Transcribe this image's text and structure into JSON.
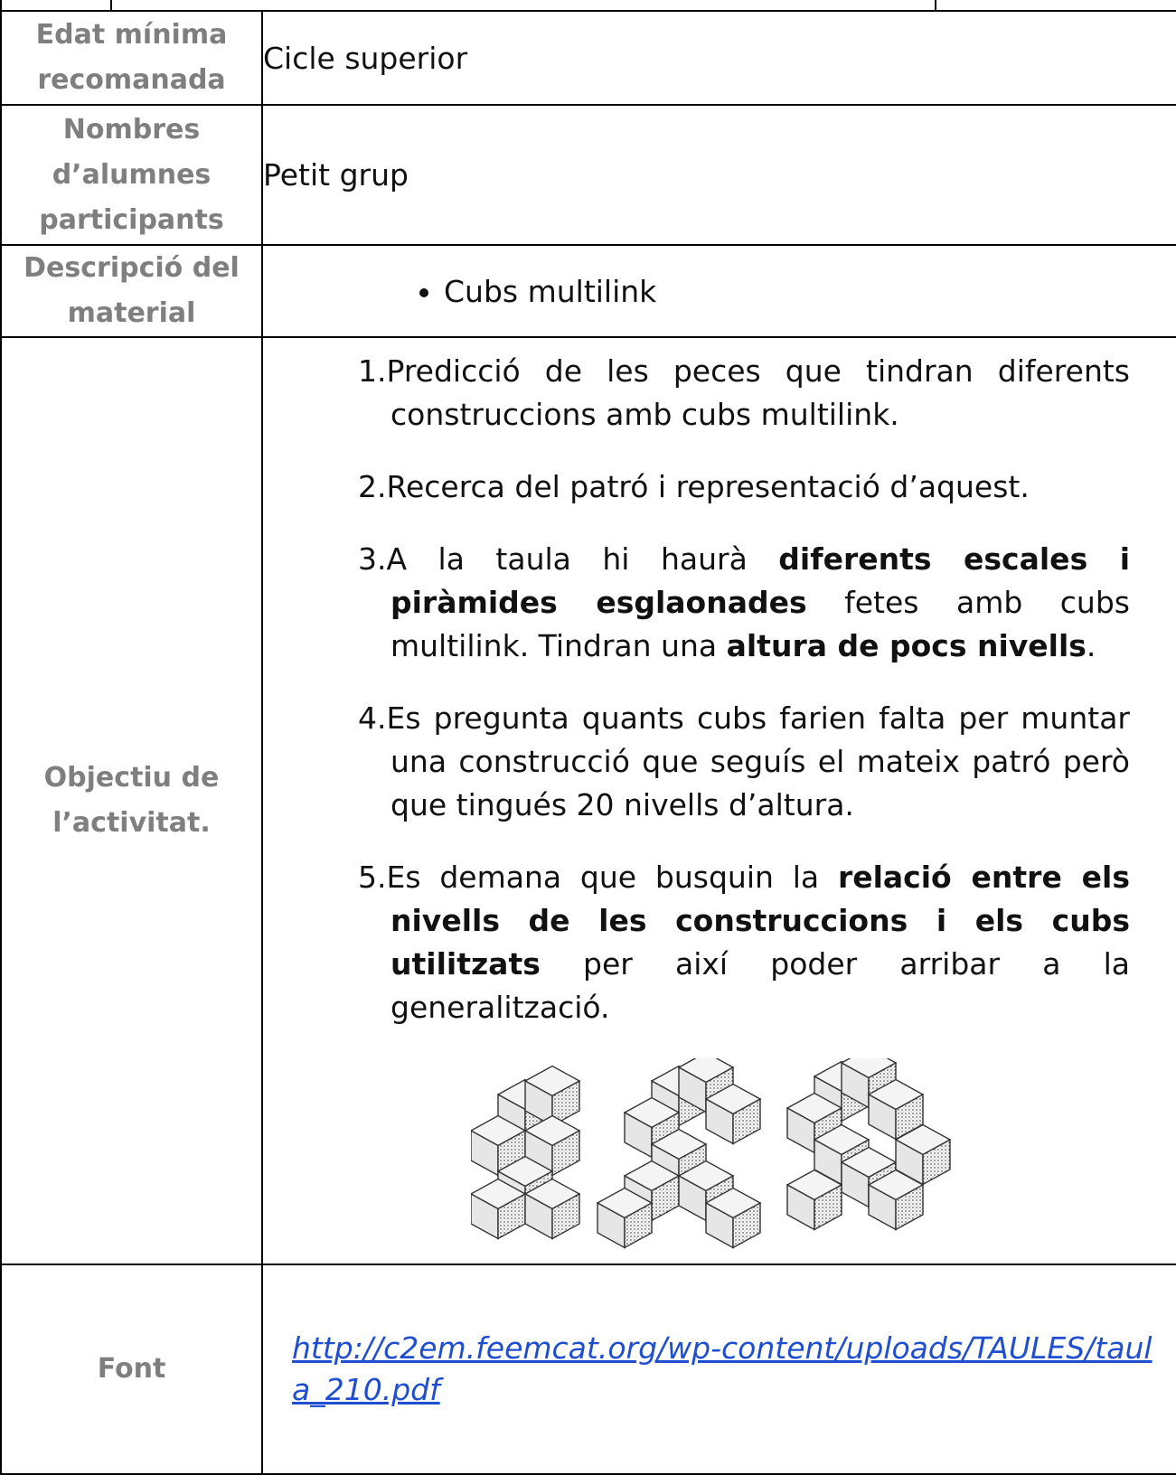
{
  "rows": [
    {
      "label": "Edat mínima recomanada",
      "value": "Cicle superior"
    },
    {
      "label": "Nombres d’alumnes participants",
      "value": "Petit grup"
    },
    {
      "label": "Descripció del material",
      "bullets": [
        "Cubs multilink"
      ]
    },
    {
      "label": "Objectiu de l’activitat.",
      "items": [
        {
          "number": "1.",
          "parts": [
            {
              "text": "Predicció de les peces que tindran diferents construccions amb cubs multilink."
            }
          ]
        },
        {
          "number": "2.",
          "parts": [
            {
              "text": "Recerca del patró i representació d’aquest."
            }
          ]
        },
        {
          "number": "3.",
          "parts": [
            {
              "text": "A la taula hi haurà "
            },
            {
              "text": "diferents escales i piràmides esglaonades",
              "bold": true
            },
            {
              "text": " fetes amb cubs multilink. Tindran una "
            },
            {
              "text": "altura de pocs nivells",
              "bold": true
            },
            {
              "text": "."
            }
          ]
        },
        {
          "number": "4.",
          "parts": [
            {
              "text": "Es pregunta quants cubs farien falta per muntar una construcció que seguís el mateix patró però que tingués 20 nivells d’altura."
            }
          ]
        },
        {
          "number": "5.",
          "parts": [
            {
              "text": "Es demana que busquin la "
            },
            {
              "text": "relació entre els nivells de les construccions i els cubs utilitzats",
              "bold": true
            },
            {
              "text": " per així poder arribar a la generalització."
            }
          ]
        }
      ]
    },
    {
      "label": "Font",
      "link": "http://c2em.feemcat.org/wp-content/uploads/TAULES/taula_210.pdf"
    }
  ]
}
